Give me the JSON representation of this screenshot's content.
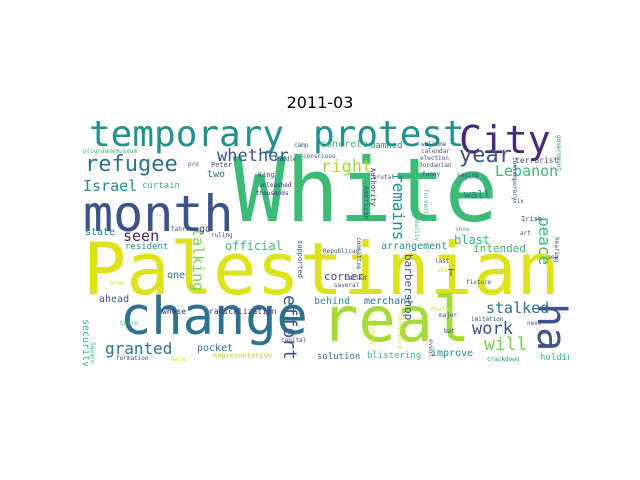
{
  "title": "2011-03",
  "palette": {
    "yellow": "#dde318",
    "lime": "#a5db36",
    "green": "#3bbb75",
    "teal": "#21918c",
    "blue": "#2c728e",
    "indigo": "#3b528b",
    "purple": "#482878",
    "dark": "#440154",
    "light_green": "#7ad151"
  },
  "words": {
    "white": "White",
    "palestinian": "Palestinian",
    "real": "real",
    "change": "change",
    "month": "month",
    "city": "City",
    "temporary": "temporary",
    "protest": "protest",
    "ha": "ha",
    "refugee": "refugee",
    "year": "year",
    "whether": "whether",
    "right": "right",
    "remains": "remains",
    "lebanon": "Lebanon",
    "israel": "Israel",
    "effort": "effort",
    "work": "work",
    "will": "will",
    "peace": "peace",
    "stalked": "stalked",
    "granted": "granted",
    "seen": "seen",
    "talking": "talking",
    "barbershop": "barbershop",
    "official": "official",
    "arrangement": "arrangement",
    "blast": "blast",
    "wall": "wall",
    "intended": "intended",
    "corner": "corner",
    "behind": "behind",
    "merchant": "merchant",
    "solution": "solution",
    "improve": "improve",
    "blistering": "blistering",
    "pocket": "pocket",
    "ahead": "ahead",
    "security": "security",
    "state": "state",
    "resident": "resident",
    "curtain": "curtain",
    "concrete": "concrete",
    "damned": "damned",
    "two": "two",
    "one": "one",
    "radicalization": "radicalization",
    "whose": "whose",
    "holding": "holding",
    "terrorist": "terrorist",
    "representative": "Representative",
    "king": "King",
    "peter": "Peter",
    "supported": "supported",
    "several": "several",
    "capital": "capital",
    "republican": "Republican",
    "authority": "Authority",
    "american": "American",
    "muslim": "Muslim",
    "irish": "Irish",
    "hearing": "hearing",
    "government": "government",
    "jordanian": "Jordanian",
    "election": "election",
    "calendar": "calendar",
    "crackdown": "crackdown",
    "major": "major",
    "next": "next",
    "cairo": "Cairo",
    "square": "Square",
    "tahrir": "Tahrir",
    "ruling": "ruling",
    "unleashed": "unleashed",
    "thousands": "thousands",
    "called": "called",
    "committee": "committee",
    "brutal": "brutal",
    "funny": "funny",
    "saying": "saying",
    "fervently": "fervently",
    "solidarity": "solidarity",
    "formation": "formation",
    "lasting": "lasting",
    "event": "event",
    "contemporary": "contemporary",
    "last": "last",
    "stay": "stay",
    "show": "show",
    "art": "art",
    "see": "see",
    "army": "Army",
    "camp": "camp",
    "conscious": "conscious",
    "welcome": "welcome",
    "middle": "Middle",
    "pro": "pro",
    "fixture": "fixture",
    "imitation": "imitation",
    "conference": "conference",
    "programme": "programmemuseum",
    "gaza": "Gaza",
    "six": "six",
    "bat": "bat",
    "go": "go",
    "t": "T"
  }
}
